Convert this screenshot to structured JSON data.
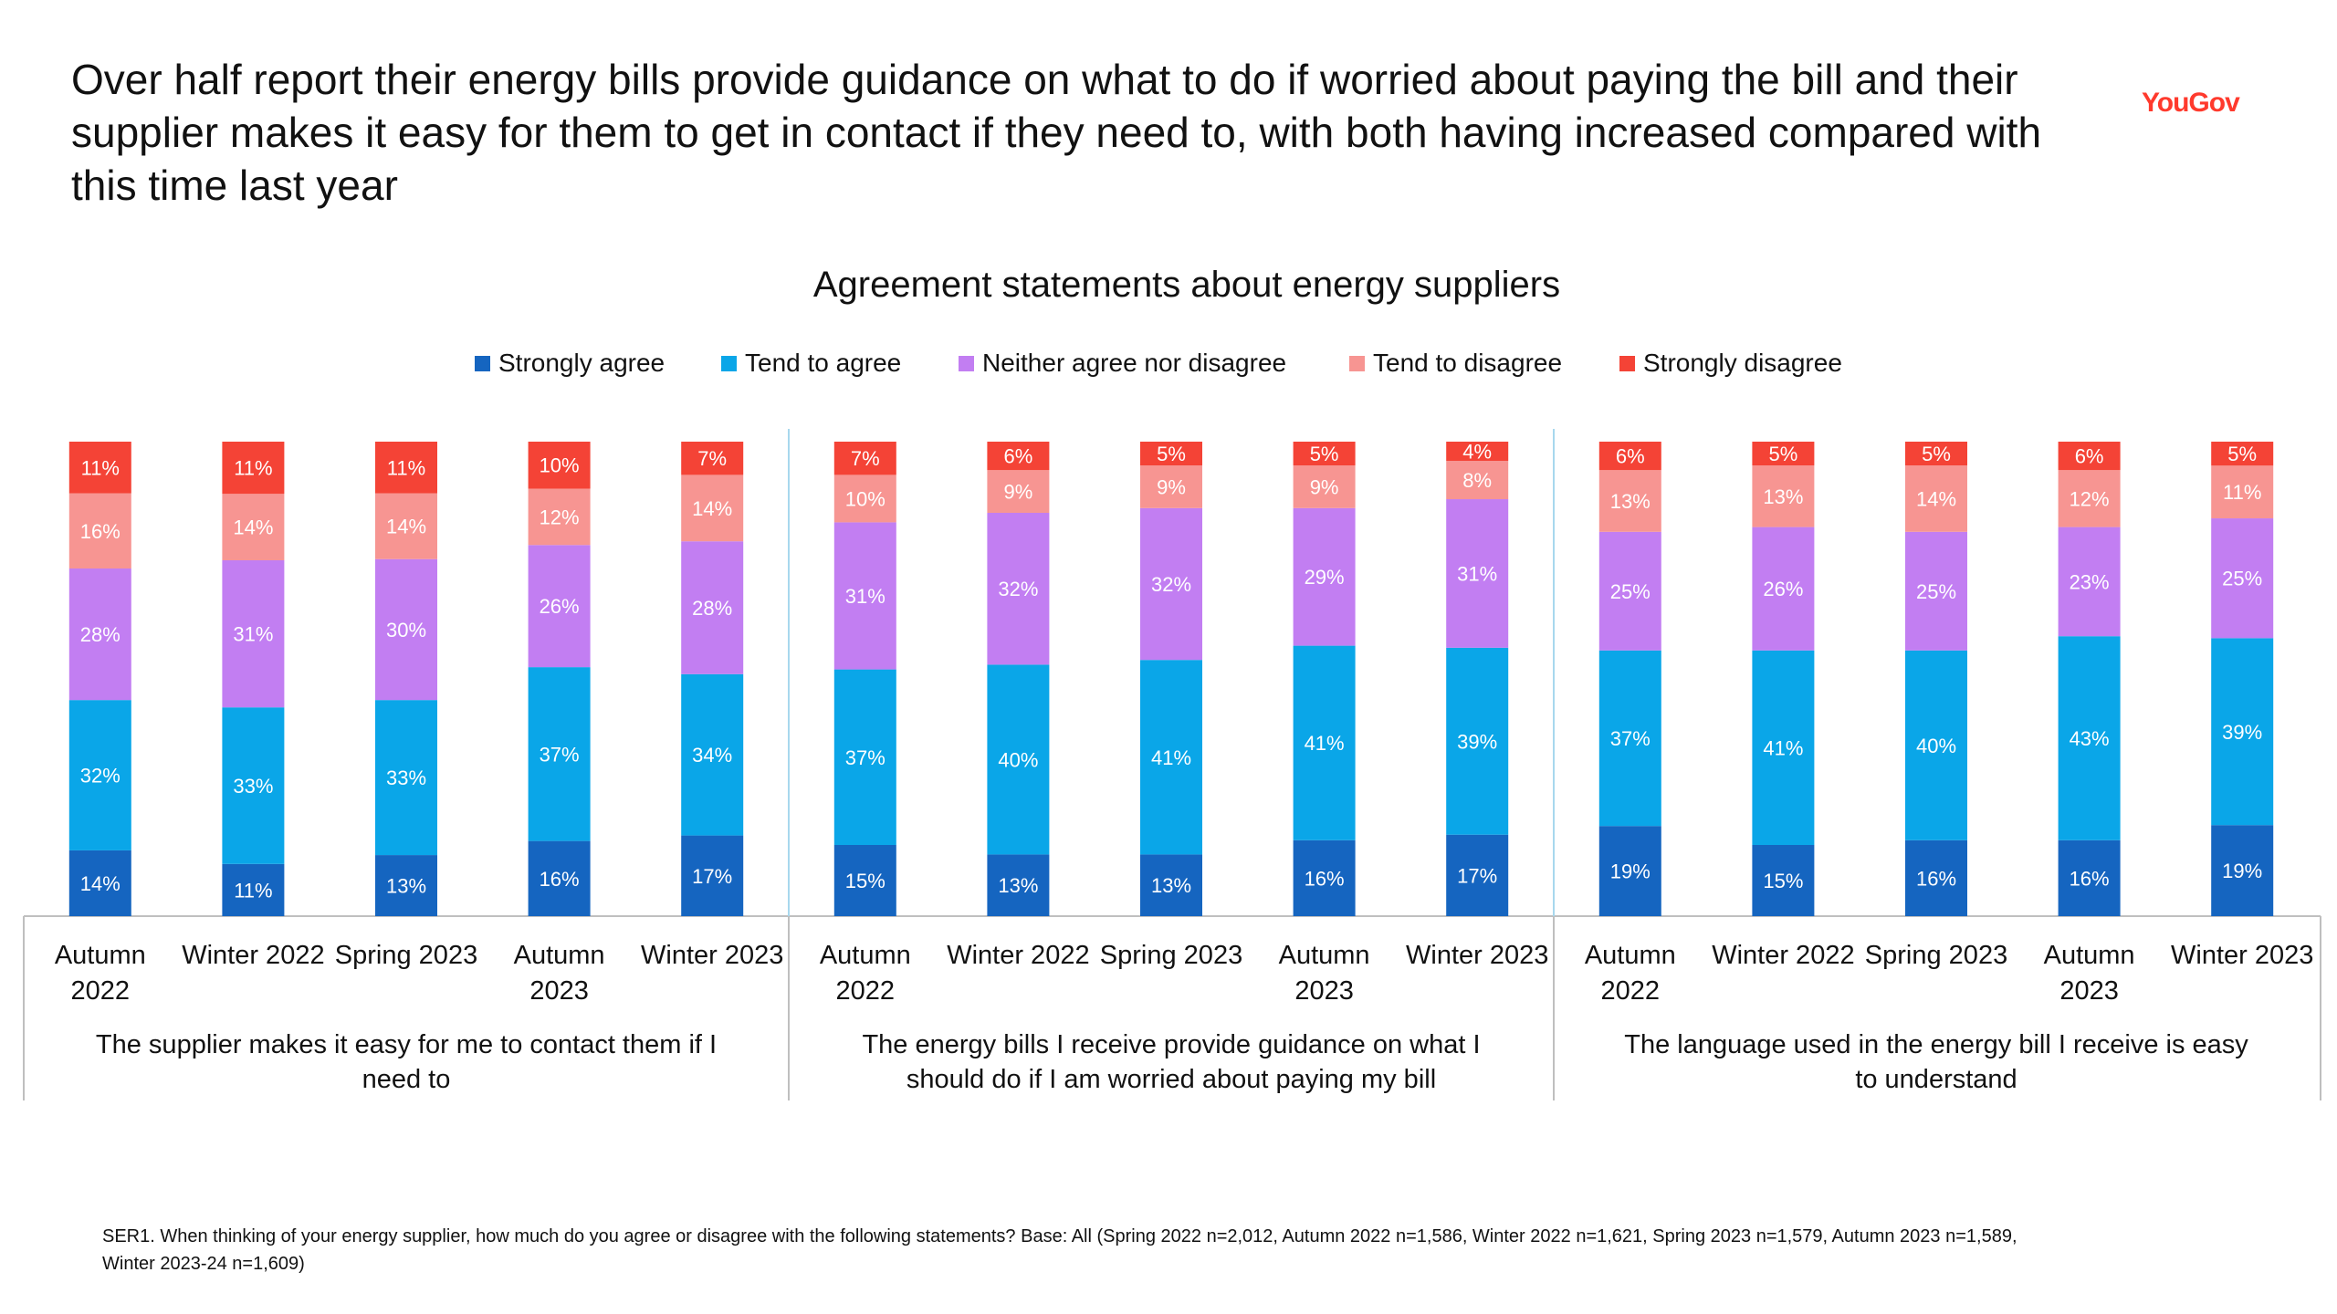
{
  "headline": "Over half report their energy bills provide guidance on what to do if worried about paying the bill and their supplier makes it easy for them to get in contact if they need to, with both having increased compared with this time last year",
  "brand": "YouGov",
  "footnote": "SER1. When thinking of your energy supplier, how much do you agree or disagree with the following statements? Base: All (Spring 2022 n=2,012, Autumn 2022 n=1,586, Winter 2022 n=1,621, Spring 2023 n=1,579, Autumn 2023 n=1,589, Winter 2023-24 n=1,609)",
  "colors": {
    "strongly_agree": "#1565c0",
    "tend_to_agree": "#0aa6e8",
    "neither": "#c27ef2",
    "tend_to_disagree": "#f79592",
    "strongly_disagree": "#f44336"
  },
  "chart_data": {
    "type": "bar",
    "stacked": true,
    "title": "Agreement statements about energy suppliers",
    "legend_position": "top",
    "ylim": [
      0,
      100
    ],
    "periods": [
      "Autumn 2022",
      "Winter 2022",
      "Spring 2023",
      "Autumn 2023",
      "Winter 2023"
    ],
    "legend": [
      "Strongly agree",
      "Tend to agree",
      "Neither agree nor disagree",
      "Tend to disagree",
      "Strongly disagree"
    ],
    "groups": [
      {
        "label": "The supplier makes it easy for me to contact them if I need to",
        "series": [
          {
            "name": "Strongly agree",
            "values": [
              14,
              11,
              13,
              16,
              17
            ]
          },
          {
            "name": "Tend to agree",
            "values": [
              32,
              33,
              33,
              37,
              34
            ]
          },
          {
            "name": "Neither agree nor disagree",
            "values": [
              28,
              31,
              30,
              26,
              28
            ]
          },
          {
            "name": "Tend to disagree",
            "values": [
              16,
              14,
              14,
              12,
              14
            ]
          },
          {
            "name": "Strongly disagree",
            "values": [
              11,
              11,
              11,
              10,
              7
            ]
          }
        ]
      },
      {
        "label": "The energy bills I receive provide guidance on what I should do if I am worried about paying my bill",
        "series": [
          {
            "name": "Strongly agree",
            "values": [
              15,
              13,
              13,
              16,
              17
            ]
          },
          {
            "name": "Tend to agree",
            "values": [
              37,
              40,
              41,
              41,
              39
            ]
          },
          {
            "name": "Neither agree nor disagree",
            "values": [
              31,
              32,
              32,
              29,
              31
            ]
          },
          {
            "name": "Tend to disagree",
            "values": [
              10,
              9,
              9,
              9,
              8
            ]
          },
          {
            "name": "Strongly disagree",
            "values": [
              7,
              6,
              5,
              5,
              4
            ]
          }
        ]
      },
      {
        "label": "The language used in the energy bill I receive is easy to understand",
        "series": [
          {
            "name": "Strongly agree",
            "values": [
              19,
              15,
              16,
              16,
              19
            ]
          },
          {
            "name": "Tend to agree",
            "values": [
              37,
              41,
              40,
              43,
              39
            ]
          },
          {
            "name": "Neither agree nor disagree",
            "values": [
              25,
              26,
              25,
              23,
              25
            ]
          },
          {
            "name": "Tend to disagree",
            "values": [
              13,
              13,
              14,
              12,
              11
            ]
          },
          {
            "name": "Strongly disagree",
            "values": [
              6,
              5,
              5,
              6,
              5
            ]
          }
        ]
      }
    ]
  }
}
